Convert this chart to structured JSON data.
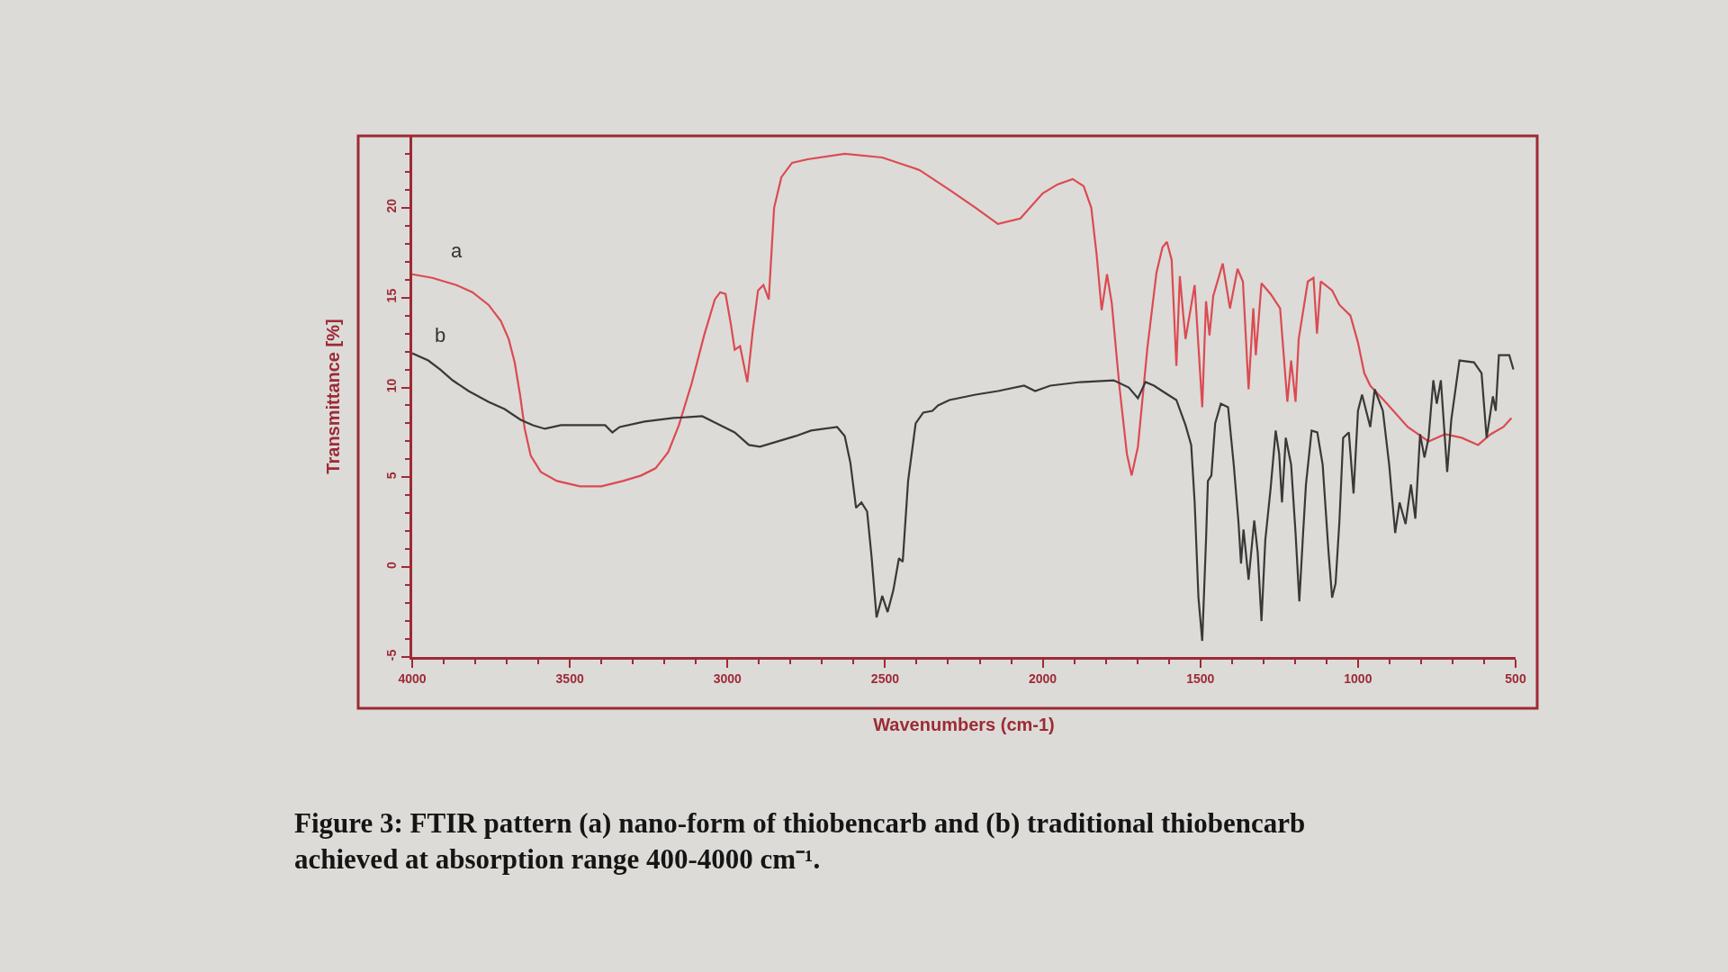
{
  "chart_data": {
    "type": "line",
    "xlabel": "Wavenumbers (cm-1)",
    "ylabel": "Transmittance [%]",
    "annotations": [
      "Figure 3: FTIR pattern (a) nano-form of thiobencarb and (b) traditional thiobencarb achieved at absorption range 400-4000 cm⁻¹."
    ],
    "xlim": [
      4000,
      500
    ],
    "ylim": [
      -5,
      24
    ],
    "xticks": [
      4000,
      {
        "value": 3900,
        "label": null
      },
      {
        "value": 3800,
        "label": null
      },
      {
        "value": 3700,
        "label": null
      },
      {
        "value": 3600,
        "label": null
      },
      3500,
      {
        "value": 3400,
        "label": null
      },
      {
        "value": 3300,
        "label": null
      },
      {
        "value": 3200,
        "label": null
      },
      {
        "value": 3100,
        "label": null
      },
      3000,
      {
        "value": 2900,
        "label": null
      },
      {
        "value": 2800,
        "label": null
      },
      {
        "value": 2700,
        "label": null
      },
      {
        "value": 2600,
        "label": null
      },
      2500,
      {
        "value": 2400,
        "label": null
      },
      {
        "value": 2300,
        "label": null
      },
      {
        "value": 2200,
        "label": null
      },
      {
        "value": 2100,
        "label": null
      },
      2000,
      {
        "value": 1900,
        "label": null
      },
      {
        "value": 1800,
        "label": null
      },
      {
        "value": 1700,
        "label": null
      },
      {
        "value": 1600,
        "label": null
      },
      1500,
      {
        "value": 1400,
        "label": null
      },
      {
        "value": 1300,
        "label": null
      },
      {
        "value": 1200,
        "label": null
      },
      {
        "value": 1100,
        "label": null
      },
      1000,
      {
        "value": 900,
        "label": null
      },
      {
        "value": 800,
        "label": null
      },
      {
        "value": 700,
        "label": null
      },
      {
        "value": 600,
        "label": null
      },
      500
    ],
    "yticks": [
      -5,
      {
        "value": -4,
        "label": null
      },
      {
        "value": -3,
        "label": null
      },
      {
        "value": -2,
        "label": null
      },
      {
        "value": -1,
        "label": null
      },
      0,
      {
        "value": 1,
        "label": null
      },
      {
        "value": 2,
        "label": null
      },
      {
        "value": 3,
        "label": null
      },
      {
        "value": 4,
        "label": null
      },
      5,
      {
        "value": 6,
        "label": null
      },
      {
        "value": 7,
        "label": null
      },
      {
        "value": 8,
        "label": null
      },
      {
        "value": 9,
        "label": null
      },
      10,
      {
        "value": 11,
        "label": null
      },
      {
        "value": 12,
        "label": null
      },
      {
        "value": 13,
        "label": null
      },
      {
        "value": 14,
        "label": null
      },
      15,
      {
        "value": 16,
        "label": null
      },
      {
        "value": 17,
        "label": null
      },
      {
        "value": 18,
        "label": null
      },
      {
        "value": 19,
        "label": null
      },
      20,
      {
        "value": 21,
        "label": null
      },
      {
        "value": 22,
        "label": null
      },
      {
        "value": 23,
        "label": null
      }
    ],
    "grid": false,
    "legend": false,
    "series": [
      {
        "name": "a",
        "color": "#dc4a52",
        "x": [
          4000,
          3936,
          3860,
          3809,
          3758,
          3719,
          3694,
          3675,
          3658,
          3643,
          3624,
          3592,
          3541,
          3468,
          3400,
          3331,
          3274,
          3228,
          3188,
          3154,
          3114,
          3074,
          3040,
          3023,
          3006,
          2989,
          2977,
          2960,
          2937,
          2920,
          2903,
          2886,
          2869,
          2852,
          2829,
          2795,
          2746,
          2628,
          2509,
          2391,
          2296,
          2213,
          2142,
          2071,
          2000,
          1953,
          1905,
          1870,
          1846,
          1829,
          1813,
          1796,
          1781,
          1757,
          1733,
          1718,
          1698,
          1668,
          1639,
          1620,
          1606,
          1591,
          1576,
          1565,
          1555,
          1547,
          1518,
          1494,
          1482,
          1471,
          1459,
          1429,
          1406,
          1382,
          1365,
          1347,
          1332,
          1324,
          1306,
          1277,
          1247,
          1224,
          1212,
          1198,
          1188,
          1159,
          1141,
          1130,
          1118,
          1082,
          1059,
          1024,
          1000,
          980,
          961,
          908,
          842,
          776,
          724,
          671,
          619,
          579,
          539,
          513
        ],
        "values": [
          16.3,
          16.1,
          15.7,
          15.3,
          14.6,
          13.7,
          12.7,
          11.4,
          9.6,
          7.7,
          6.2,
          5.3,
          4.8,
          4.5,
          4.5,
          4.8,
          5.1,
          5.5,
          6.4,
          7.9,
          10.2,
          12.9,
          14.9,
          15.3,
          15.2,
          13.5,
          12.1,
          12.3,
          10.3,
          13.1,
          15.4,
          15.7,
          14.9,
          20.0,
          21.7,
          22.5,
          22.7,
          23.0,
          22.8,
          22.1,
          21.0,
          20.0,
          19.1,
          19.4,
          20.8,
          21.3,
          21.6,
          21.2,
          20.0,
          17.4,
          14.3,
          16.3,
          14.7,
          10.1,
          6.3,
          5.1,
          6.7,
          12.2,
          16.4,
          17.8,
          18.1,
          17.1,
          11.2,
          16.2,
          14.2,
          12.7,
          15.7,
          8.9,
          14.8,
          12.9,
          15.1,
          16.9,
          14.4,
          16.6,
          15.9,
          9.9,
          14.4,
          11.8,
          15.8,
          15.2,
          14.4,
          9.2,
          11.5,
          9.2,
          12.7,
          15.9,
          16.1,
          13.0,
          15.9,
          15.4,
          14.6,
          14.0,
          12.5,
          10.8,
          10.1,
          9.1,
          7.8,
          7.0,
          7.4,
          7.2,
          6.8,
          7.4,
          7.8,
          8.3
        ]
      },
      {
        "name": "b",
        "color": "#3a3838",
        "x": [
          4000,
          3949,
          3911,
          3872,
          3821,
          3758,
          3707,
          3656,
          3617,
          3579,
          3528,
          3445,
          3388,
          3365,
          3342,
          3263,
          3171,
          3080,
          3034,
          2977,
          2932,
          2897,
          2840,
          2783,
          2735,
          2652,
          2628,
          2610,
          2592,
          2575,
          2557,
          2543,
          2527,
          2509,
          2492,
          2474,
          2456,
          2444,
          2427,
          2403,
          2379,
          2350,
          2332,
          2296,
          2213,
          2142,
          2059,
          2024,
          1976,
          1881,
          1775,
          1727,
          1698,
          1674,
          1647,
          1612,
          1576,
          1547,
          1529,
          1518,
          1506,
          1494,
          1482,
          1476,
          1465,
          1453,
          1435,
          1412,
          1394,
          1379,
          1371,
          1363,
          1347,
          1329,
          1318,
          1306,
          1294,
          1277,
          1261,
          1250,
          1241,
          1229,
          1212,
          1198,
          1186,
          1174,
          1165,
          1147,
          1129,
          1112,
          1094,
          1082,
          1071,
          1059,
          1047,
          1029,
          1014,
          1000,
          987,
          961,
          947,
          921,
          901,
          882,
          868,
          849,
          832,
          818,
          803,
          789,
          776,
          761,
          750,
          737,
          717,
          704,
          678,
          632,
          608,
          592,
          572,
          563,
          553,
          520,
          507
        ],
        "values": [
          11.9,
          11.5,
          11.0,
          10.4,
          9.8,
          9.2,
          8.8,
          8.2,
          7.9,
          7.7,
          7.9,
          7.9,
          7.9,
          7.5,
          7.8,
          8.1,
          8.3,
          8.4,
          8.0,
          7.5,
          6.8,
          6.7,
          7.0,
          7.3,
          7.6,
          7.8,
          7.3,
          5.8,
          3.3,
          3.6,
          3.1,
          0.6,
          -2.8,
          -1.6,
          -2.5,
          -1.3,
          0.5,
          0.3,
          4.8,
          8.0,
          8.6,
          8.7,
          9.0,
          9.3,
          9.6,
          9.8,
          10.1,
          9.8,
          10.1,
          10.3,
          10.4,
          10.0,
          9.4,
          10.3,
          10.1,
          9.7,
          9.3,
          7.9,
          6.8,
          3.6,
          -1.7,
          -4.1,
          1.5,
          4.8,
          5.1,
          8.0,
          9.1,
          8.9,
          5.7,
          2.5,
          0.2,
          2.1,
          -0.7,
          2.6,
          0.8,
          -3.0,
          1.5,
          4.4,
          7.6,
          6.3,
          3.6,
          7.2,
          5.7,
          1.9,
          -1.9,
          1.9,
          4.6,
          7.6,
          7.5,
          5.7,
          1.0,
          -1.7,
          -0.9,
          2.5,
          7.2,
          7.5,
          4.1,
          8.7,
          9.6,
          7.8,
          9.9,
          8.7,
          5.7,
          1.9,
          3.6,
          2.4,
          4.6,
          2.7,
          7.4,
          6.1,
          7.2,
          10.4,
          9.1,
          10.4,
          5.3,
          8.2,
          11.5,
          11.4,
          10.8,
          7.2,
          9.5,
          8.7,
          11.8,
          11.8,
          11.0
        ]
      }
    ]
  }
}
